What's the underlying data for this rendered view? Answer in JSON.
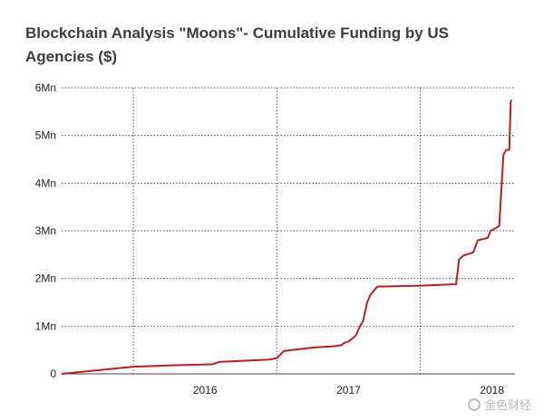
{
  "chart_data": {
    "type": "line",
    "title": "Blockchain Analysis \"Moons\"- Cumulative Funding by US Agencies ($)",
    "xlabel": "",
    "ylabel": "",
    "y_tick_labels": [
      "0",
      "1Mn",
      "2Mn",
      "3Mn",
      "4Mn",
      "5Mn",
      "6Mn"
    ],
    "y_tick_values": [
      0,
      1000000,
      2000000,
      3000000,
      4000000,
      5000000,
      6000000
    ],
    "ylim": [
      0,
      6000000
    ],
    "x_tick_labels": [
      "2016",
      "2017",
      "2018"
    ],
    "x_tick_values": [
      2016.0,
      2017.0,
      2018.0
    ],
    "xlim": [
      2015.0,
      2018.16
    ],
    "grid": "horizontal dotted and vertical dotted at year boundaries",
    "series": [
      {
        "color": "#b22222",
        "x": [
          2015.0,
          2015.5,
          2015.8,
          2016.05,
          2016.1,
          2016.45,
          2016.5,
          2016.55,
          2016.75,
          2016.9,
          2016.95,
          2016.97,
          2017.0,
          2017.05,
          2017.08,
          2017.1,
          2017.13,
          2017.15,
          2017.2,
          2017.5,
          2017.75,
          2017.77,
          2017.8,
          2017.87,
          2017.9,
          2017.97,
          2017.99,
          2018.05,
          2018.08,
          2018.1,
          2018.12,
          2018.13,
          2018.135
        ],
        "y": [
          0,
          150000,
          180000,
          200000,
          250000,
          300000,
          330000,
          480000,
          550000,
          580000,
          600000,
          650000,
          680000,
          800000,
          1000000,
          1100000,
          1500000,
          1650000,
          1830000,
          1850000,
          1880000,
          2400000,
          2480000,
          2550000,
          2800000,
          2850000,
          3000000,
          3100000,
          4600000,
          4700000,
          4700000,
          5700000,
          5750000
        ]
      }
    ]
  },
  "watermark": {
    "text": "金色财经"
  }
}
